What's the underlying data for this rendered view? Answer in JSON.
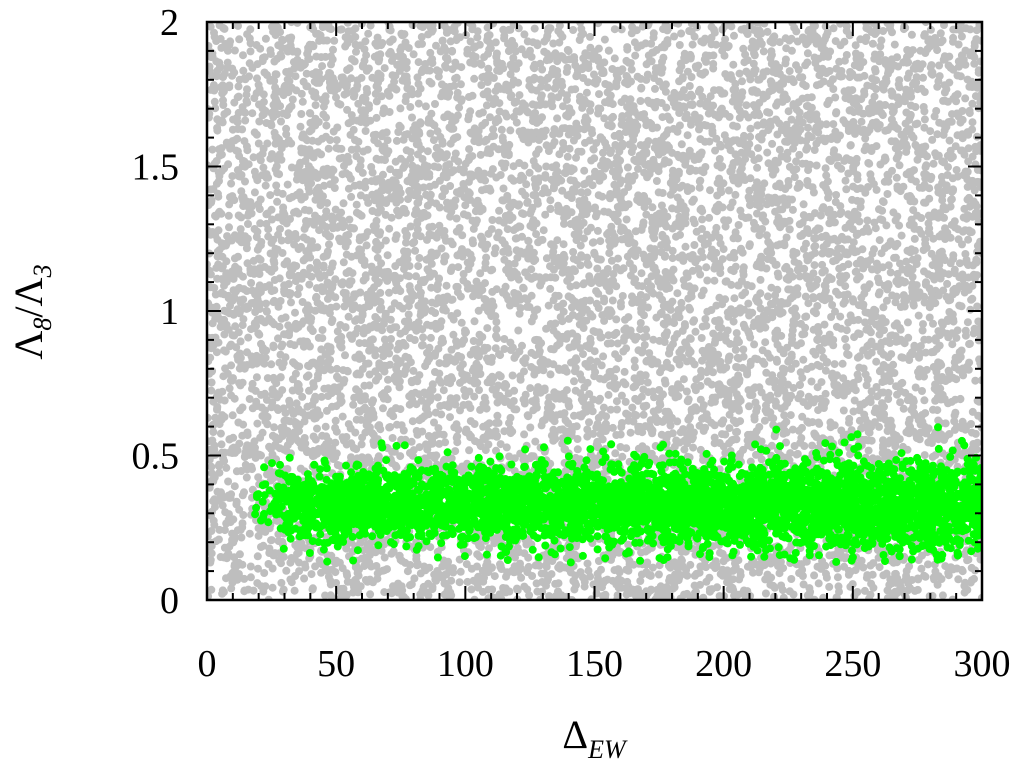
{
  "chart_data": {
    "type": "scatter",
    "xlabel": {
      "main": "Δ",
      "sub": "EW"
    },
    "ylabel": {
      "num": "Λ",
      "num_sub": "8",
      "sep": "/",
      "den": "Λ",
      "den_sub": "3"
    },
    "xlim": [
      0,
      300
    ],
    "ylim": [
      0,
      2
    ],
    "xticks": [
      0,
      50,
      100,
      150,
      200,
      250,
      300
    ],
    "xtick_labels": [
      "0",
      "50",
      "100",
      "150",
      "200",
      "250",
      "300"
    ],
    "yticks": [
      0,
      0.5,
      1,
      1.5,
      2
    ],
    "ytick_labels": [
      "0",
      "0.5",
      "1",
      "1.5",
      "2"
    ],
    "grid": false,
    "legend": "none",
    "series": [
      {
        "color": "#bebebe",
        "description_of_distribution": "dense uniform fill over x 0–300, y 0–2",
        "x_range": [
          0,
          300
        ],
        "y_range": [
          0,
          2
        ]
      },
      {
        "color": "#00ff00",
        "x_range": [
          18,
          300
        ],
        "y_band_center": 0.33,
        "y_band_spread": [
          0.13,
          0.6
        ]
      }
    ]
  }
}
